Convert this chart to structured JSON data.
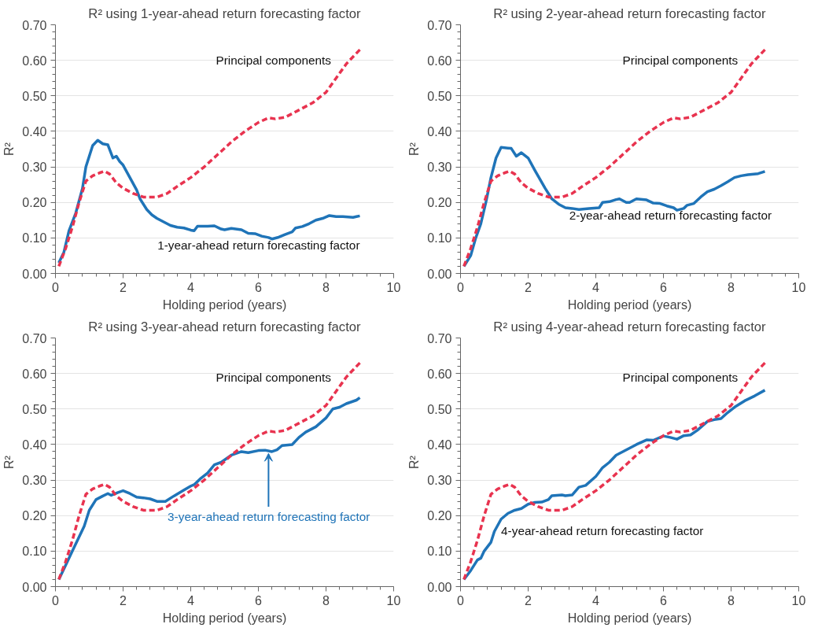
{
  "chart_data": [
    {
      "type": "line",
      "title": "R² using 1-year-ahead return forecasting factor",
      "xlabel": "Holding period (years)",
      "ylabel": "R²",
      "xlim": [
        0,
        10
      ],
      "xticks": [
        0,
        2,
        4,
        6,
        8,
        10
      ],
      "ylim": [
        0,
        0.7
      ],
      "yticks": [
        {
          "value": 0,
          "label": "0.00"
        },
        {
          "value": 0.1,
          "label": "0.10"
        },
        {
          "value": 0.2,
          "label": "0.20"
        },
        {
          "value": 0.3,
          "label": "0.30"
        },
        {
          "value": 0.4,
          "label": "0.40"
        },
        {
          "value": 0.5,
          "label": "0.50"
        },
        {
          "value": 0.6,
          "label": "0.60"
        },
        {
          "value": 0.7,
          "label": "0.70"
        }
      ],
      "grid": "y",
      "marker": "none",
      "series": [
        {
          "name": "Principal components",
          "color": "#e8334f",
          "line_style": "dashed",
          "x": [
            0.1,
            0.3,
            0.5,
            0.7,
            0.9,
            1.1,
            1.3,
            1.45,
            1.6,
            1.8,
            2.0,
            2.3,
            2.6,
            3.0,
            3.3,
            3.6,
            4.0,
            4.4,
            4.8,
            5.2,
            5.6,
            6.0,
            6.3,
            6.5,
            6.8,
            7.2,
            7.6,
            8.0,
            8.3,
            8.6,
            9.0
          ],
          "values": [
            0.02,
            0.07,
            0.13,
            0.2,
            0.26,
            0.275,
            0.283,
            0.288,
            0.28,
            0.255,
            0.24,
            0.225,
            0.215,
            0.215,
            0.225,
            0.245,
            0.27,
            0.3,
            0.335,
            0.37,
            0.4,
            0.425,
            0.438,
            0.435,
            0.44,
            0.46,
            0.48,
            0.51,
            0.55,
            0.59,
            0.63
          ]
        },
        {
          "name": "1-year-ahead return forecasting factor",
          "color": "#1f74b8",
          "line_style": "solid",
          "x": [
            0.1,
            0.25,
            0.4,
            0.6,
            0.8,
            0.9,
            1.0,
            1.1,
            1.25,
            1.4,
            1.55,
            1.7,
            1.8,
            1.9,
            2.0,
            2.2,
            2.4,
            2.5,
            2.7,
            2.85,
            3.0,
            3.2,
            3.4,
            3.6,
            3.8,
            4.0,
            4.1,
            4.2,
            4.5,
            4.7,
            4.9,
            5.0,
            5.2,
            5.5,
            5.7,
            5.9,
            6.1,
            6.3,
            6.4,
            6.6,
            6.8,
            7.0,
            7.1,
            7.3,
            7.5,
            7.7,
            7.9,
            8.1,
            8.3,
            8.5,
            8.8,
            8.9,
            9.0
          ],
          "values": [
            0.03,
            0.06,
            0.12,
            0.17,
            0.24,
            0.3,
            0.33,
            0.36,
            0.375,
            0.365,
            0.362,
            0.325,
            0.33,
            0.315,
            0.305,
            0.27,
            0.235,
            0.21,
            0.18,
            0.165,
            0.155,
            0.145,
            0.135,
            0.13,
            0.128,
            0.122,
            0.12,
            0.133,
            0.133,
            0.134,
            0.125,
            0.123,
            0.127,
            0.123,
            0.113,
            0.112,
            0.105,
            0.101,
            0.097,
            0.102,
            0.11,
            0.117,
            0.128,
            0.132,
            0.14,
            0.15,
            0.155,
            0.163,
            0.16,
            0.16,
            0.158,
            0.16,
            0.162
          ]
        }
      ]
    },
    {
      "type": "line",
      "title": "R² using 2-year-ahead return forecasting factor",
      "xlabel": "Holding period (years)",
      "ylabel": "R²",
      "xlim": [
        0,
        10
      ],
      "xticks": [
        0,
        2,
        4,
        6,
        8,
        10
      ],
      "ylim": [
        0,
        0.7
      ],
      "yticks": [
        {
          "value": 0,
          "label": "0.00"
        },
        {
          "value": 0.1,
          "label": "0.10"
        },
        {
          "value": 0.2,
          "label": "0.20"
        },
        {
          "value": 0.3,
          "label": "0.30"
        },
        {
          "value": 0.4,
          "label": "0.40"
        },
        {
          "value": 0.5,
          "label": "0.50"
        },
        {
          "value": 0.6,
          "label": "0.60"
        },
        {
          "value": 0.7,
          "label": "0.70"
        }
      ],
      "grid": "y",
      "marker": "none",
      "series": [
        {
          "name": "Principal components",
          "color": "#e8334f",
          "line_style": "dashed",
          "x": [
            0.1,
            0.3,
            0.5,
            0.7,
            0.9,
            1.1,
            1.3,
            1.45,
            1.6,
            1.8,
            2.0,
            2.3,
            2.6,
            3.0,
            3.3,
            3.6,
            4.0,
            4.4,
            4.8,
            5.2,
            5.6,
            6.0,
            6.3,
            6.5,
            6.8,
            7.2,
            7.6,
            8.0,
            8.3,
            8.6,
            9.0
          ],
          "values": [
            0.02,
            0.07,
            0.13,
            0.2,
            0.26,
            0.275,
            0.283,
            0.288,
            0.28,
            0.255,
            0.24,
            0.225,
            0.215,
            0.215,
            0.225,
            0.245,
            0.27,
            0.3,
            0.335,
            0.37,
            0.4,
            0.425,
            0.438,
            0.435,
            0.44,
            0.46,
            0.48,
            0.51,
            0.55,
            0.59,
            0.63
          ]
        },
        {
          "name": "2-year-ahead return forecasting factor",
          "color": "#1f74b8",
          "line_style": "solid",
          "x": [
            0.1,
            0.3,
            0.45,
            0.6,
            0.75,
            0.9,
            1.05,
            1.2,
            1.4,
            1.5,
            1.65,
            1.8,
            2.0,
            2.2,
            2.5,
            2.7,
            2.9,
            3.1,
            3.3,
            3.5,
            3.8,
            4.1,
            4.2,
            4.4,
            4.6,
            4.7,
            4.9,
            5.0,
            5.2,
            5.5,
            5.7,
            5.9,
            6.1,
            6.3,
            6.4,
            6.6,
            6.7,
            6.9,
            7.1,
            7.3,
            7.5,
            7.7,
            7.9,
            8.1,
            8.3,
            8.5,
            8.8,
            9.0
          ],
          "values": [
            0.02,
            0.05,
            0.1,
            0.14,
            0.2,
            0.27,
            0.325,
            0.355,
            0.353,
            0.352,
            0.33,
            0.34,
            0.325,
            0.29,
            0.24,
            0.21,
            0.195,
            0.185,
            0.183,
            0.18,
            0.183,
            0.185,
            0.2,
            0.202,
            0.208,
            0.21,
            0.2,
            0.2,
            0.21,
            0.207,
            0.198,
            0.197,
            0.19,
            0.185,
            0.178,
            0.183,
            0.192,
            0.197,
            0.215,
            0.23,
            0.237,
            0.247,
            0.258,
            0.27,
            0.275,
            0.278,
            0.281,
            0.287
          ]
        }
      ]
    },
    {
      "type": "line",
      "title": "R² using 3-year-ahead return forecasting factor",
      "xlabel": "Holding period (years)",
      "ylabel": "R²",
      "xlim": [
        0,
        10
      ],
      "xticks": [
        0,
        2,
        4,
        6,
        8,
        10
      ],
      "ylim": [
        0,
        0.7
      ],
      "yticks": [
        {
          "value": 0,
          "label": "0.00"
        },
        {
          "value": 0.1,
          "label": "0.10"
        },
        {
          "value": 0.2,
          "label": "0.20"
        },
        {
          "value": 0.3,
          "label": "0.30"
        },
        {
          "value": 0.4,
          "label": "0.40"
        },
        {
          "value": 0.5,
          "label": "0.50"
        },
        {
          "value": 0.6,
          "label": "0.60"
        },
        {
          "value": 0.7,
          "label": "0.70"
        }
      ],
      "grid": "y",
      "marker": "none",
      "series": [
        {
          "name": "Principal components",
          "color": "#e8334f",
          "line_style": "dashed",
          "x": [
            0.1,
            0.3,
            0.5,
            0.7,
            0.9,
            1.1,
            1.3,
            1.45,
            1.6,
            1.8,
            2.0,
            2.3,
            2.6,
            3.0,
            3.3,
            3.6,
            4.0,
            4.4,
            4.8,
            5.2,
            5.6,
            6.0,
            6.3,
            6.5,
            6.8,
            7.2,
            7.6,
            8.0,
            8.3,
            8.6,
            9.0
          ],
          "values": [
            0.02,
            0.07,
            0.13,
            0.2,
            0.26,
            0.275,
            0.283,
            0.288,
            0.28,
            0.255,
            0.24,
            0.225,
            0.215,
            0.215,
            0.225,
            0.245,
            0.27,
            0.3,
            0.335,
            0.37,
            0.4,
            0.425,
            0.438,
            0.435,
            0.44,
            0.46,
            0.48,
            0.51,
            0.55,
            0.59,
            0.63
          ]
        },
        {
          "name": "3-year-ahead return forecasting factor",
          "color": "#1f74b8",
          "line_style": "solid",
          "x": [
            0.1,
            0.3,
            0.5,
            0.7,
            0.85,
            1.0,
            1.2,
            1.4,
            1.55,
            1.65,
            1.85,
            2.0,
            2.2,
            2.4,
            2.6,
            2.8,
            3.0,
            3.25,
            3.5,
            3.8,
            4.0,
            4.1,
            4.3,
            4.5,
            4.7,
            4.9,
            5.2,
            5.5,
            5.7,
            6.0,
            6.2,
            6.4,
            6.55,
            6.7,
            7.0,
            7.2,
            7.4,
            7.7,
            8.0,
            8.2,
            8.4,
            8.6,
            8.9,
            9.0
          ],
          "values": [
            0.02,
            0.06,
            0.1,
            0.14,
            0.17,
            0.215,
            0.245,
            0.255,
            0.262,
            0.257,
            0.265,
            0.27,
            0.262,
            0.252,
            0.25,
            0.247,
            0.24,
            0.24,
            0.255,
            0.272,
            0.283,
            0.287,
            0.305,
            0.32,
            0.343,
            0.35,
            0.37,
            0.38,
            0.377,
            0.383,
            0.384,
            0.38,
            0.385,
            0.397,
            0.4,
            0.42,
            0.435,
            0.45,
            0.475,
            0.5,
            0.505,
            0.515,
            0.525,
            0.532
          ]
        }
      ]
    },
    {
      "type": "line",
      "title": "R² using 4-year-ahead return forecasting factor",
      "xlabel": "Holding period (years)",
      "ylabel": "R²",
      "xlim": [
        0,
        10
      ],
      "xticks": [
        0,
        2,
        4,
        6,
        8,
        10
      ],
      "ylim": [
        0,
        0.7
      ],
      "yticks": [
        {
          "value": 0,
          "label": "0.00"
        },
        {
          "value": 0.1,
          "label": "0.10"
        },
        {
          "value": 0.2,
          "label": "0.20"
        },
        {
          "value": 0.3,
          "label": "0.30"
        },
        {
          "value": 0.4,
          "label": "0.40"
        },
        {
          "value": 0.5,
          "label": "0.50"
        },
        {
          "value": 0.6,
          "label": "0.60"
        },
        {
          "value": 0.7,
          "label": "0.70"
        }
      ],
      "grid": "y",
      "marker": "none",
      "series": [
        {
          "name": "Principal components",
          "color": "#e8334f",
          "line_style": "dashed",
          "x": [
            0.1,
            0.3,
            0.5,
            0.7,
            0.9,
            1.1,
            1.3,
            1.45,
            1.6,
            1.8,
            2.0,
            2.3,
            2.6,
            3.0,
            3.3,
            3.6,
            4.0,
            4.4,
            4.8,
            5.2,
            5.6,
            6.0,
            6.3,
            6.5,
            6.8,
            7.2,
            7.6,
            8.0,
            8.3,
            8.6,
            9.0
          ],
          "values": [
            0.02,
            0.07,
            0.13,
            0.2,
            0.26,
            0.275,
            0.283,
            0.288,
            0.28,
            0.255,
            0.24,
            0.225,
            0.215,
            0.215,
            0.225,
            0.245,
            0.27,
            0.3,
            0.335,
            0.37,
            0.4,
            0.425,
            0.438,
            0.435,
            0.44,
            0.46,
            0.48,
            0.51,
            0.55,
            0.59,
            0.63
          ]
        },
        {
          "name": "4-year-ahead return forecasting factor",
          "color": "#1f74b8",
          "line_style": "solid",
          "x": [
            0.1,
            0.3,
            0.5,
            0.6,
            0.7,
            0.9,
            1.0,
            1.2,
            1.4,
            1.6,
            1.8,
            2.0,
            2.2,
            2.4,
            2.6,
            2.7,
            3.0,
            3.1,
            3.3,
            3.5,
            3.7,
            4.0,
            4.2,
            4.4,
            4.6,
            4.8,
            5.0,
            5.2,
            5.5,
            5.7,
            6.0,
            6.2,
            6.4,
            6.6,
            6.8,
            7.0,
            7.3,
            7.5,
            7.7,
            7.9,
            8.1,
            8.4,
            8.7,
            9.0
          ],
          "values": [
            0.02,
            0.045,
            0.075,
            0.08,
            0.1,
            0.125,
            0.155,
            0.19,
            0.206,
            0.215,
            0.22,
            0.232,
            0.237,
            0.238,
            0.245,
            0.256,
            0.258,
            0.256,
            0.258,
            0.28,
            0.285,
            0.31,
            0.335,
            0.35,
            0.37,
            0.38,
            0.39,
            0.4,
            0.413,
            0.412,
            0.424,
            0.42,
            0.415,
            0.425,
            0.427,
            0.44,
            0.465,
            0.47,
            0.473,
            0.49,
            0.505,
            0.523,
            0.537,
            0.553
          ]
        }
      ]
    }
  ]
}
